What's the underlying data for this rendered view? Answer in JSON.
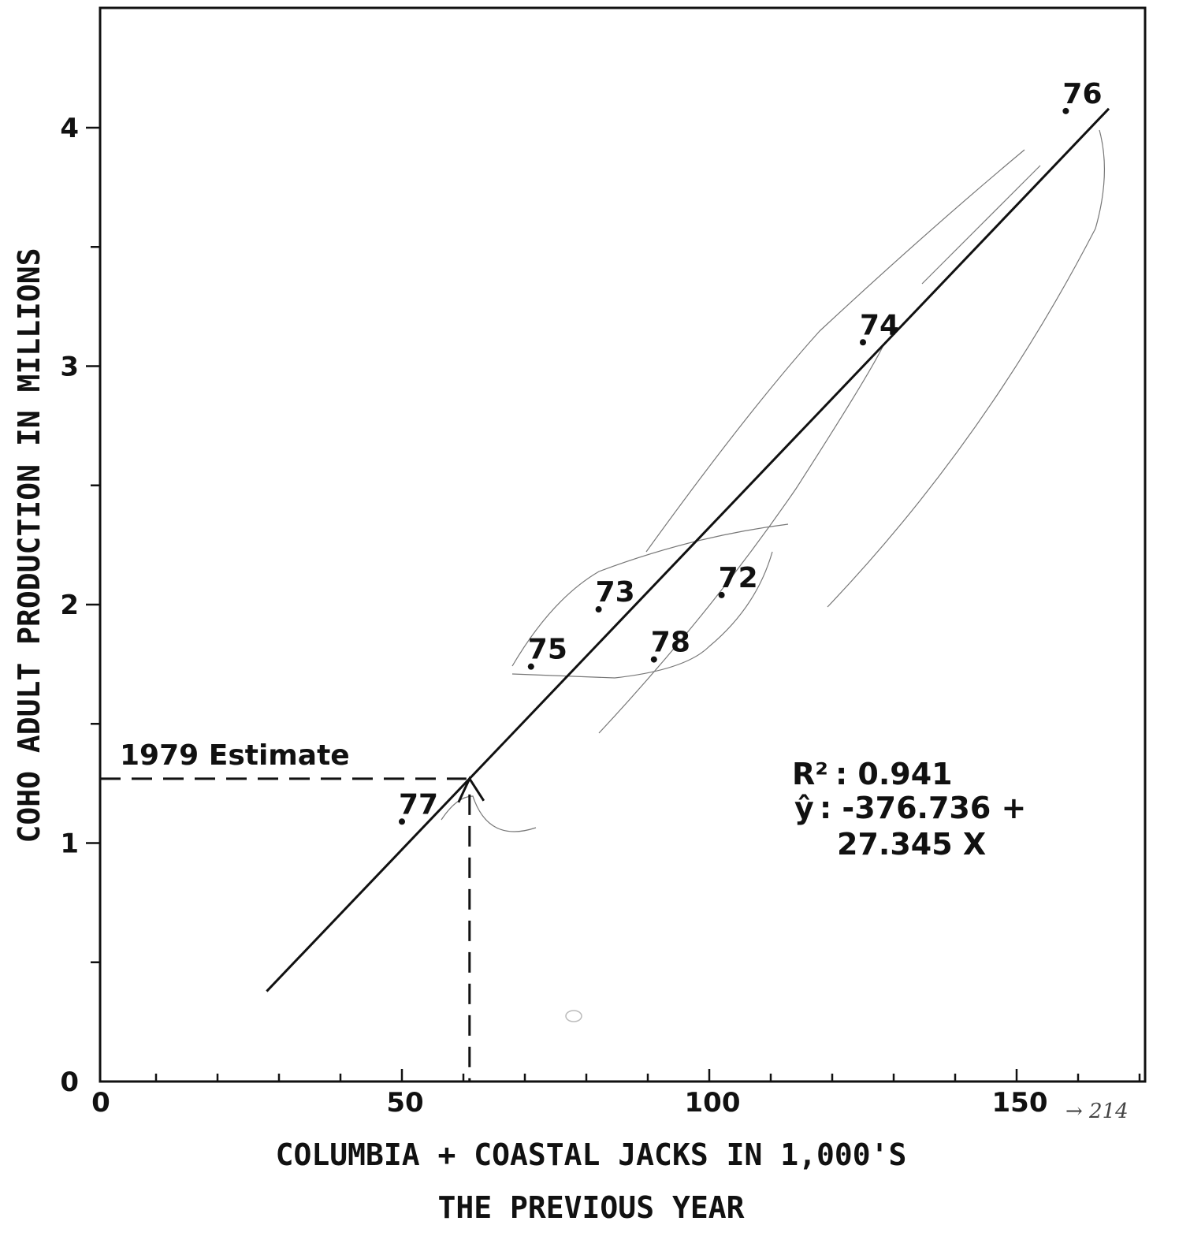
{
  "chart_data": {
    "type": "scatter",
    "title": "",
    "xlabel_line1": "COLUMBIA + COASTAL JACKS IN 1,000'S",
    "xlabel_line2": "THE PREVIOUS YEAR",
    "ylabel": "COHO ADULT PRODUCTION IN MILLIONS",
    "xlim": [
      0,
      170
    ],
    "ylim": [
      0,
      4.5
    ],
    "x_ticks": [
      0,
      50,
      100,
      150
    ],
    "y_ticks": [
      0,
      1,
      2,
      3,
      4
    ],
    "x_minor_step": 10,
    "y_minor_step": 0.5,
    "grid": false,
    "points": [
      {
        "label": "72",
        "x": 102,
        "y": 2.04
      },
      {
        "label": "73",
        "x": 82,
        "y": 1.98
      },
      {
        "label": "74",
        "x": 125,
        "y": 3.1
      },
      {
        "label": "75",
        "x": 71,
        "y": 1.74
      },
      {
        "label": "76",
        "x": 158,
        "y": 4.07
      },
      {
        "label": "77",
        "x": 50,
        "y": 1.09
      },
      {
        "label": "78",
        "x": 91,
        "y": 1.77
      }
    ],
    "regression": {
      "r_squared_label": "R²",
      "r_squared_value": ": 0.941",
      "yhat_label": "ŷ",
      "equation_line1": ": -376.736 +",
      "equation_line2": "27.345 X",
      "x_range": [
        28,
        165
      ]
    },
    "estimate": {
      "label": "1979 Estimate",
      "x": 61,
      "y": 1.27
    },
    "margin_note": "→ 214"
  }
}
